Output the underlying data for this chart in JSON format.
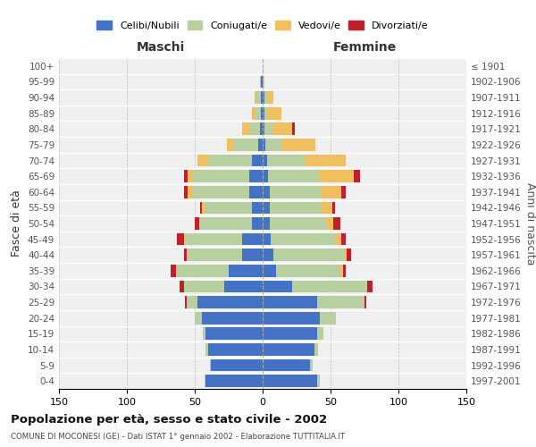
{
  "age_groups": [
    "0-4",
    "5-9",
    "10-14",
    "15-19",
    "20-24",
    "25-29",
    "30-34",
    "35-39",
    "40-44",
    "45-49",
    "50-54",
    "55-59",
    "60-64",
    "65-69",
    "70-74",
    "75-79",
    "80-84",
    "85-89",
    "90-94",
    "95-99",
    "100+"
  ],
  "birth_years": [
    "1997-2001",
    "1992-1996",
    "1987-1991",
    "1982-1986",
    "1977-1981",
    "1972-1976",
    "1967-1971",
    "1962-1966",
    "1957-1961",
    "1952-1956",
    "1947-1951",
    "1942-1946",
    "1937-1941",
    "1932-1936",
    "1927-1931",
    "1922-1926",
    "1917-1921",
    "1912-1916",
    "1907-1911",
    "1902-1906",
    "≤ 1901"
  ],
  "male": {
    "celibi": [
      42,
      38,
      40,
      42,
      45,
      48,
      28,
      25,
      15,
      15,
      8,
      8,
      10,
      10,
      8,
      3,
      2,
      1,
      1,
      1,
      0
    ],
    "coniugati": [
      1,
      1,
      2,
      2,
      5,
      8,
      30,
      38,
      40,
      42,
      38,
      35,
      42,
      42,
      32,
      18,
      8,
      4,
      3,
      1,
      0
    ],
    "vedovi": [
      0,
      0,
      0,
      0,
      0,
      0,
      0,
      1,
      1,
      1,
      1,
      2,
      3,
      3,
      8,
      5,
      5,
      3,
      2,
      0,
      0
    ],
    "divorziati": [
      0,
      0,
      0,
      0,
      0,
      1,
      3,
      4,
      2,
      5,
      3,
      1,
      3,
      3,
      0,
      0,
      0,
      0,
      0,
      0,
      0
    ]
  },
  "female": {
    "nubili": [
      40,
      35,
      38,
      40,
      42,
      40,
      22,
      10,
      8,
      6,
      5,
      5,
      5,
      4,
      3,
      2,
      1,
      1,
      1,
      0,
      0
    ],
    "coniugate": [
      2,
      2,
      3,
      5,
      12,
      35,
      55,
      48,
      52,
      48,
      42,
      38,
      38,
      38,
      28,
      12,
      6,
      3,
      2,
      0,
      0
    ],
    "vedove": [
      0,
      0,
      0,
      0,
      0,
      0,
      0,
      1,
      2,
      4,
      5,
      8,
      15,
      25,
      30,
      25,
      15,
      10,
      5,
      1,
      0
    ],
    "divorziate": [
      0,
      0,
      0,
      0,
      0,
      1,
      4,
      2,
      3,
      3,
      5,
      2,
      3,
      5,
      0,
      0,
      2,
      0,
      0,
      0,
      0
    ]
  },
  "colors": {
    "celibi_nubili": "#4472c4",
    "coniugati": "#b8cfa0",
    "vedovi": "#f0c060",
    "divorziati": "#c0202a"
  },
  "xlim": 150,
  "title": "Popolazione per età, sesso e stato civile - 2002",
  "subtitle": "COMUNE DI MOCONESI (GE) - Dati ISTAT 1° gennaio 2002 - Elaborazione TUTTITALIA.IT",
  "ylabel_left": "Fasce di età",
  "ylabel_right": "Anni di nascita",
  "xlabel_left": "Maschi",
  "xlabel_right": "Femmine",
  "bg_color": "#f0f0f0",
  "grid_color": "#cccccc"
}
